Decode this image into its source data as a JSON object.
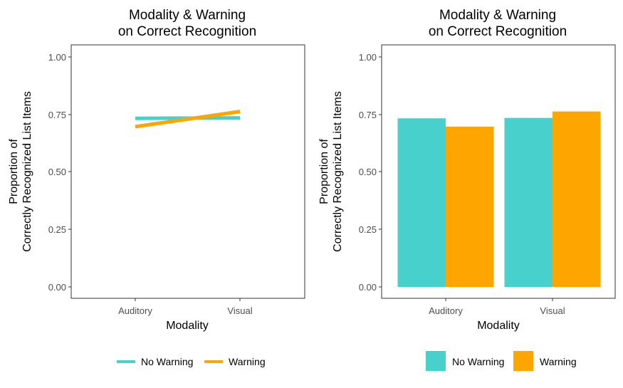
{
  "colors": {
    "no_warning": "#48D1CC",
    "warning": "#FFA500"
  },
  "chart_data": [
    {
      "type": "line",
      "title_line1": "Modality & Warning",
      "title_line2": "on Correct Recognition",
      "xlabel": "Modality",
      "ylabel_line1": "Proportion of",
      "ylabel_line2": "Correctly Recognized List Items",
      "categories": [
        "Auditory",
        "Visual"
      ],
      "ylim": [
        0,
        1
      ],
      "yticks": [
        "0.00",
        "0.25",
        "0.50",
        "0.75",
        "1.00"
      ],
      "series": [
        {
          "name": "No Warning",
          "color": "#48D1CC",
          "values": [
            0.733,
            0.735
          ]
        },
        {
          "name": "Warning",
          "color": "#FFA500",
          "values": [
            0.697,
            0.763
          ]
        }
      ],
      "legend_position": "bottom"
    },
    {
      "type": "bar",
      "title_line1": "Modality & Warning",
      "title_line2": "on Correct Recognition",
      "xlabel": "Modality",
      "ylabel_line1": "Proportion of",
      "ylabel_line2": "Correctly Recognized List Items",
      "categories": [
        "Auditory",
        "Visual"
      ],
      "ylim": [
        0,
        1
      ],
      "yticks": [
        "0.00",
        "0.25",
        "0.50",
        "0.75",
        "1.00"
      ],
      "series": [
        {
          "name": "No Warning",
          "color": "#48D1CC",
          "values": [
            0.733,
            0.735
          ]
        },
        {
          "name": "Warning",
          "color": "#FFA500",
          "values": [
            0.697,
            0.763
          ]
        }
      ],
      "legend_position": "bottom"
    }
  ]
}
